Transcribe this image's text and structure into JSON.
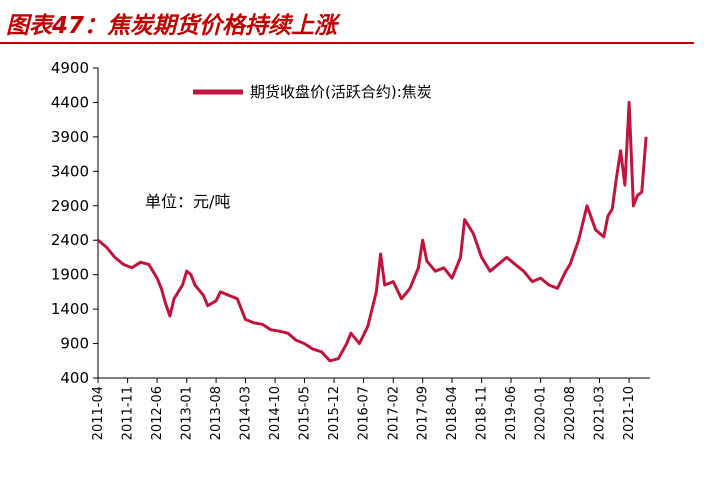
{
  "header": {
    "title": "图表47：焦炭期货价格持续上涨"
  },
  "chart_data": {
    "type": "line",
    "title": "图表47：焦炭期货价格持续上涨",
    "unit_note": "单位：元/吨",
    "xlabel": "",
    "ylabel": "",
    "ylim": [
      400,
      4900
    ],
    "y_ticks": [
      "400",
      "900",
      "1400",
      "1900",
      "2400",
      "2900",
      "3400",
      "3900",
      "4400",
      "4900"
    ],
    "x_ticks": [
      "2011-04",
      "2011-11",
      "2012-06",
      "2013-01",
      "2013-08",
      "2014-03",
      "2014-10",
      "2015-05",
      "2015-12",
      "2016-07",
      "2017-02",
      "2017-09",
      "2018-04",
      "2018-11",
      "2019-06",
      "2020-01",
      "2020-08",
      "2021-03",
      "2021-10"
    ],
    "legend_position": "top",
    "grid": false,
    "series": [
      {
        "name": "期货收盘价(活跃合约):焦炭",
        "color": "#c0143c",
        "points": [
          [
            "2011-04",
            2400
          ],
          [
            "2011-06",
            2300
          ],
          [
            "2011-08",
            2150
          ],
          [
            "2011-10",
            2050
          ],
          [
            "2011-12",
            2000
          ],
          [
            "2012-02",
            2080
          ],
          [
            "2012-04",
            2050
          ],
          [
            "2012-06",
            1850
          ],
          [
            "2012-07",
            1700
          ],
          [
            "2012-08",
            1480
          ],
          [
            "2012-09",
            1300
          ],
          [
            "2012-10",
            1550
          ],
          [
            "2012-12",
            1750
          ],
          [
            "2013-01",
            1950
          ],
          [
            "2013-02",
            1900
          ],
          [
            "2013-03",
            1750
          ],
          [
            "2013-05",
            1600
          ],
          [
            "2013-06",
            1450
          ],
          [
            "2013-08",
            1520
          ],
          [
            "2013-09",
            1650
          ],
          [
            "2013-11",
            1600
          ],
          [
            "2014-01",
            1550
          ],
          [
            "2014-03",
            1250
          ],
          [
            "2014-05",
            1200
          ],
          [
            "2014-07",
            1180
          ],
          [
            "2014-09",
            1100
          ],
          [
            "2014-11",
            1080
          ],
          [
            "2015-01",
            1050
          ],
          [
            "2015-03",
            950
          ],
          [
            "2015-05",
            900
          ],
          [
            "2015-07",
            820
          ],
          [
            "2015-09",
            780
          ],
          [
            "2015-11",
            650
          ],
          [
            "2016-01",
            680
          ],
          [
            "2016-03",
            900
          ],
          [
            "2016-04",
            1050
          ],
          [
            "2016-06",
            900
          ],
          [
            "2016-08",
            1150
          ],
          [
            "2016-10",
            1650
          ],
          [
            "2016-11",
            2200
          ],
          [
            "2016-12",
            1750
          ],
          [
            "2017-02",
            1800
          ],
          [
            "2017-04",
            1550
          ],
          [
            "2017-06",
            1700
          ],
          [
            "2017-08",
            2000
          ],
          [
            "2017-09",
            2400
          ],
          [
            "2017-10",
            2100
          ],
          [
            "2017-12",
            1950
          ],
          [
            "2018-02",
            2000
          ],
          [
            "2018-04",
            1850
          ],
          [
            "2018-06",
            2150
          ],
          [
            "2018-07",
            2700
          ],
          [
            "2018-09",
            2500
          ],
          [
            "2018-11",
            2150
          ],
          [
            "2019-01",
            1950
          ],
          [
            "2019-03",
            2050
          ],
          [
            "2019-05",
            2150
          ],
          [
            "2019-07",
            2050
          ],
          [
            "2019-09",
            1950
          ],
          [
            "2019-11",
            1800
          ],
          [
            "2020-01",
            1850
          ],
          [
            "2020-03",
            1750
          ],
          [
            "2020-05",
            1700
          ],
          [
            "2020-07",
            1950
          ],
          [
            "2020-08",
            2050
          ],
          [
            "2020-10",
            2400
          ],
          [
            "2020-12",
            2900
          ],
          [
            "2021-02",
            2550
          ],
          [
            "2021-04",
            2450
          ],
          [
            "2021-05",
            2750
          ],
          [
            "2021-06",
            2850
          ],
          [
            "2021-07",
            3300
          ],
          [
            "2021-08",
            3700
          ],
          [
            "2021-09",
            3200
          ],
          [
            "2021-10",
            4400
          ],
          [
            "2021-11",
            2900
          ],
          [
            "2021-12",
            3050
          ],
          [
            "2022-01",
            3100
          ],
          [
            "2022-02",
            3900
          ]
        ]
      }
    ]
  }
}
